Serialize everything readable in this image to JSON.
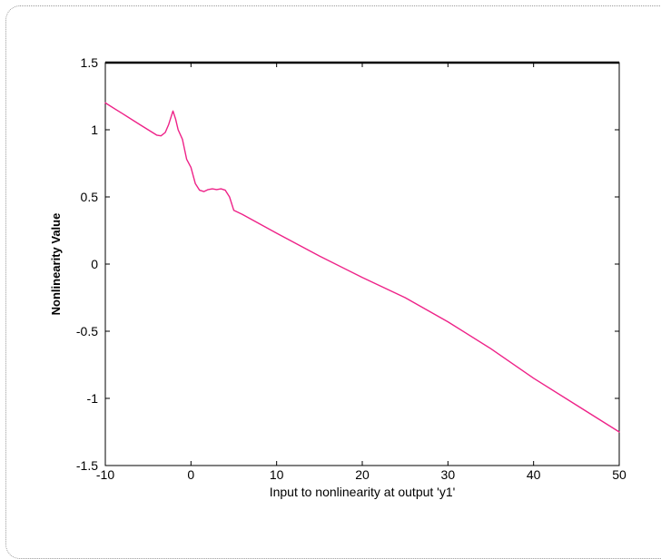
{
  "chart_data": {
    "type": "line",
    "title": "",
    "xlabel": "Input to nonlinearity at output 'y1'",
    "ylabel": "Nonlinearity Value",
    "xlim": [
      -10,
      50
    ],
    "ylim": [
      -1.5,
      1.5
    ],
    "xticks": [
      -10,
      0,
      10,
      20,
      30,
      40,
      50
    ],
    "yticks": [
      -1.5,
      -1,
      -0.5,
      0,
      0.5,
      1,
      1.5
    ],
    "xtick_labels": [
      "-10",
      "0",
      "10",
      "20",
      "30",
      "40",
      "50"
    ],
    "ytick_labels": [
      "-1.5",
      "-1",
      "-0.5",
      "0",
      "0.5",
      "1",
      "1.5"
    ],
    "grid": false,
    "colors": {
      "line": "#ee2288",
      "axes": "#000000"
    },
    "series": [
      {
        "x": [
          -10,
          -8,
          -6,
          -4,
          -3.5,
          -3,
          -2.6,
          -2.3,
          -2.1,
          -1.8,
          -1.5,
          -1,
          -0.5,
          0,
          0.5,
          1,
          1.5,
          2,
          2.5,
          3,
          3.5,
          4,
          4.5,
          5,
          6,
          8,
          10,
          15,
          20,
          25,
          30,
          35,
          40,
          45,
          50
        ],
        "y": [
          1.2,
          1.12,
          1.04,
          0.96,
          0.955,
          0.98,
          1.04,
          1.1,
          1.14,
          1.08,
          1.0,
          0.93,
          0.78,
          0.72,
          0.6,
          0.55,
          0.54,
          0.555,
          0.56,
          0.555,
          0.56,
          0.55,
          0.5,
          0.4,
          0.37,
          0.3,
          0.23,
          0.06,
          -0.1,
          -0.25,
          -0.43,
          -0.63,
          -0.85,
          -1.05,
          -1.25
        ]
      }
    ]
  }
}
